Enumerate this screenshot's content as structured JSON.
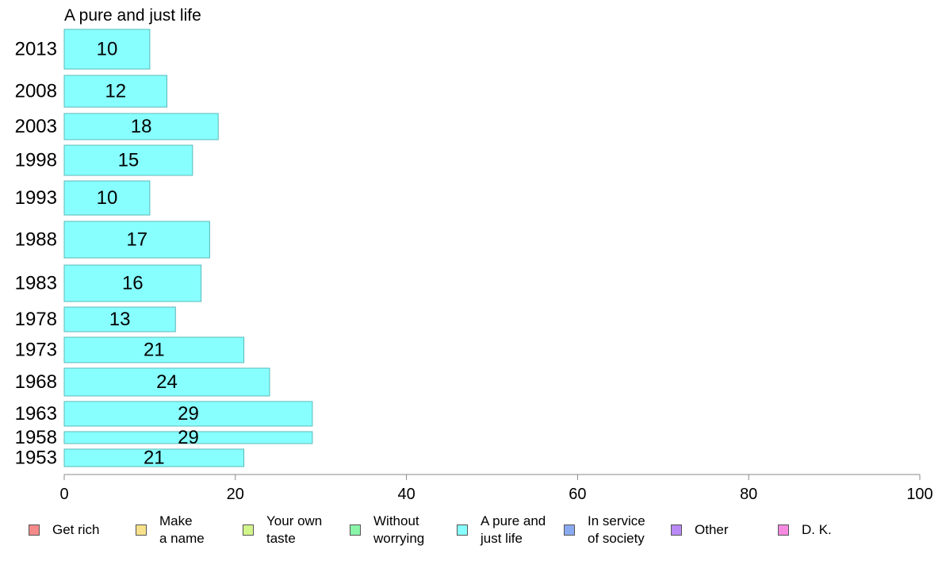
{
  "chart_data": {
    "type": "bar",
    "orientation": "horizontal",
    "title": "A pure and just life",
    "categories": [
      "2013",
      "2008",
      "2003",
      "1998",
      "1993",
      "1988",
      "1983",
      "1978",
      "1973",
      "1968",
      "1963",
      "1958",
      "1953"
    ],
    "values": [
      10,
      12,
      18,
      15,
      10,
      17,
      16,
      13,
      21,
      24,
      29,
      29,
      21
    ],
    "xlim": [
      0,
      100
    ],
    "xticks": [
      0,
      20,
      40,
      60,
      80,
      100
    ],
    "grid": false,
    "bar_color": "#88ffff",
    "bar_edge_color": "#5bb8b8",
    "legend_position": "bottom",
    "legend": [
      {
        "label": "Get rich",
        "color": "#f48a8a"
      },
      {
        "label": "Make\na name",
        "color": "#f8e18a"
      },
      {
        "label": "Your own\ntaste",
        "color": "#d2f58a"
      },
      {
        "label": "Without\nworrying",
        "color": "#8af5a8"
      },
      {
        "label": "A pure and\njust life",
        "color": "#88ffff"
      },
      {
        "label": "In service\nof society",
        "color": "#8aaaf0"
      },
      {
        "label": "Other",
        "color": "#b98af5"
      },
      {
        "label": "D. K.",
        "color": "#f58ae0"
      }
    ]
  }
}
